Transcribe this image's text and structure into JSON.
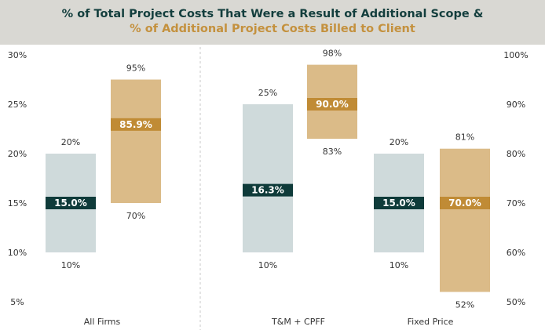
{
  "chart_data": {
    "type": "box",
    "title": "% of Total Project Costs That Were a Result of Additional Scope &",
    "subtitle": "% of Additional Project Costs Billed to Client",
    "categories": [
      "All Firms",
      "T&M + CPFF",
      "Fixed Price"
    ],
    "left_axis": {
      "ylim": [
        5,
        30
      ],
      "ticks": [
        "5%",
        "10%",
        "15%",
        "20%",
        "25%",
        "30%"
      ]
    },
    "right_axis": {
      "ylim": [
        50,
        100
      ],
      "ticks": [
        "50%",
        "60%",
        "70%",
        "80%",
        "90%",
        "100%"
      ]
    },
    "grid": false,
    "series": [
      {
        "axis": "left",
        "color": "#cfdadb",
        "median_color": "#0f3b3a",
        "boxes": [
          {
            "category": "All Firms",
            "low": 10,
            "high": 20,
            "median": 15.0,
            "low_label": "10%",
            "high_label": "20%",
            "median_label": "15.0%"
          },
          {
            "category": "T&M + CPFF",
            "low": 10,
            "high": 25,
            "median": 16.3,
            "low_label": "10%",
            "high_label": "25%",
            "median_label": "16.3%"
          },
          {
            "category": "Fixed Price",
            "low": 10,
            "high": 20,
            "median": 15.0,
            "low_label": "10%",
            "high_label": "20%",
            "median_label": "15.0%"
          }
        ]
      },
      {
        "axis": "right",
        "color": "#dbbb88",
        "median_color": "#c08b35",
        "boxes": [
          {
            "category": "All Firms",
            "low": 70,
            "high": 95,
            "median": 85.9,
            "low_label": "70%",
            "high_label": "95%",
            "median_label": "85.9%"
          },
          {
            "category": "T&M + CPFF",
            "low": 83,
            "high": 98,
            "median": 90.0,
            "low_label": "83%",
            "high_label": "98%",
            "median_label": "90.0%"
          },
          {
            "category": "Fixed Price",
            "low": 52,
            "high": 81,
            "median": 70.0,
            "low_label": "52%",
            "high_label": "81%",
            "median_label": "70.0%"
          }
        ]
      }
    ]
  }
}
